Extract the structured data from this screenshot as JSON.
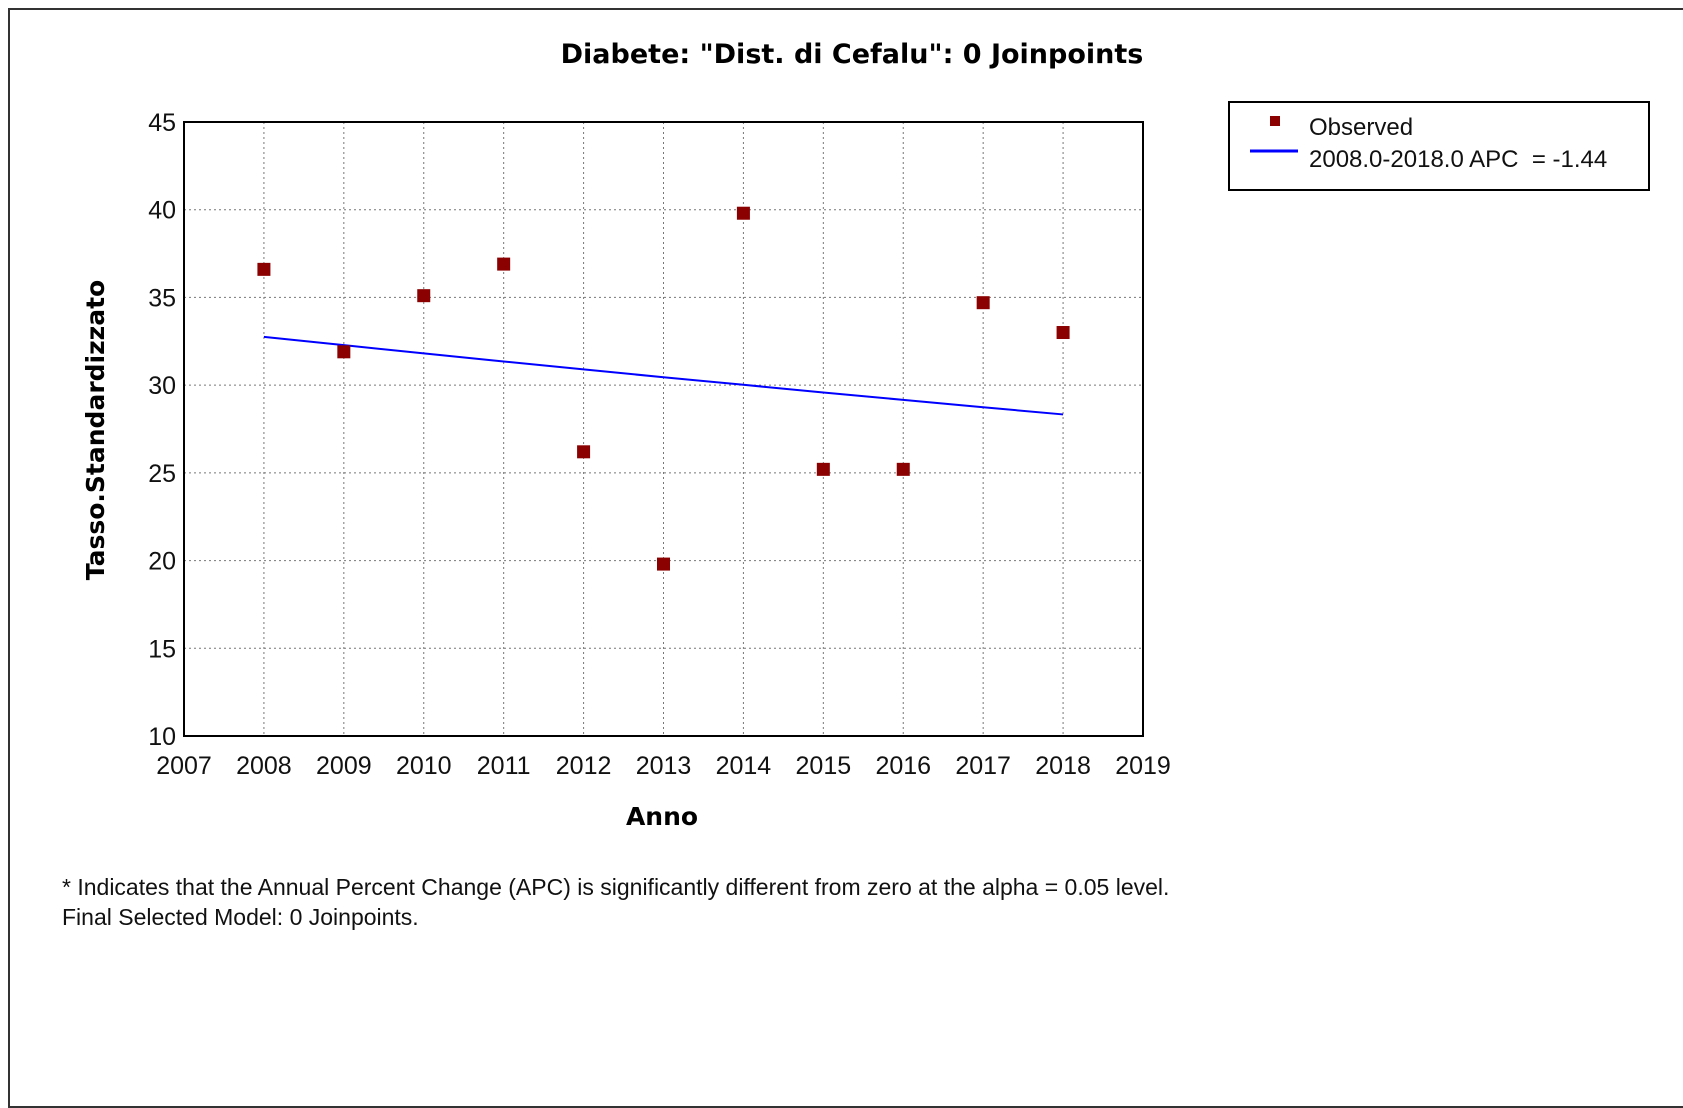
{
  "chart_data": {
    "type": "scatter",
    "title": "Diabete: \"Dist. di Cefalu\": 0 Joinpoints",
    "xlabel": "Anno",
    "ylabel": "Tasso.Standardizzato",
    "xlim": [
      2007,
      2019
    ],
    "ylim": [
      10,
      45
    ],
    "xticks": [
      2007,
      2008,
      2009,
      2010,
      2011,
      2012,
      2013,
      2014,
      2015,
      2016,
      2017,
      2018,
      2019
    ],
    "yticks": [
      10,
      15,
      20,
      25,
      30,
      35,
      40,
      45
    ],
    "grid": true,
    "legend_position": "top-right, outside plot",
    "series": [
      {
        "name": "Observed",
        "kind": "scatter",
        "marker": "square",
        "color": "#8b0000",
        "x": [
          2008,
          2009,
          2010,
          2011,
          2012,
          2013,
          2014,
          2015,
          2016,
          2017,
          2018
        ],
        "y": [
          36.6,
          31.9,
          35.1,
          36.9,
          26.2,
          19.8,
          39.8,
          25.2,
          25.2,
          34.7,
          33.0
        ]
      },
      {
        "name": "2008.0-2018.0 APC  = -1.44",
        "kind": "line",
        "color": "#0000ff",
        "x": [
          2008,
          2009,
          2010,
          2011,
          2012,
          2013,
          2014,
          2015,
          2016,
          2017,
          2018
        ],
        "y": [
          32.75,
          32.28,
          31.81,
          31.35,
          30.9,
          30.45,
          30.02,
          29.58,
          29.16,
          28.74,
          28.33
        ]
      }
    ]
  },
  "legend": {
    "observed_label": "Observed",
    "line_label": "2008.0-2018.0 APC  = -1.44"
  },
  "footnote": {
    "line1": "* Indicates that the Annual Percent Change (APC) is significantly different from zero at the alpha = 0.05 level.",
    "line2": "Final Selected Model: 0 Joinpoints."
  }
}
